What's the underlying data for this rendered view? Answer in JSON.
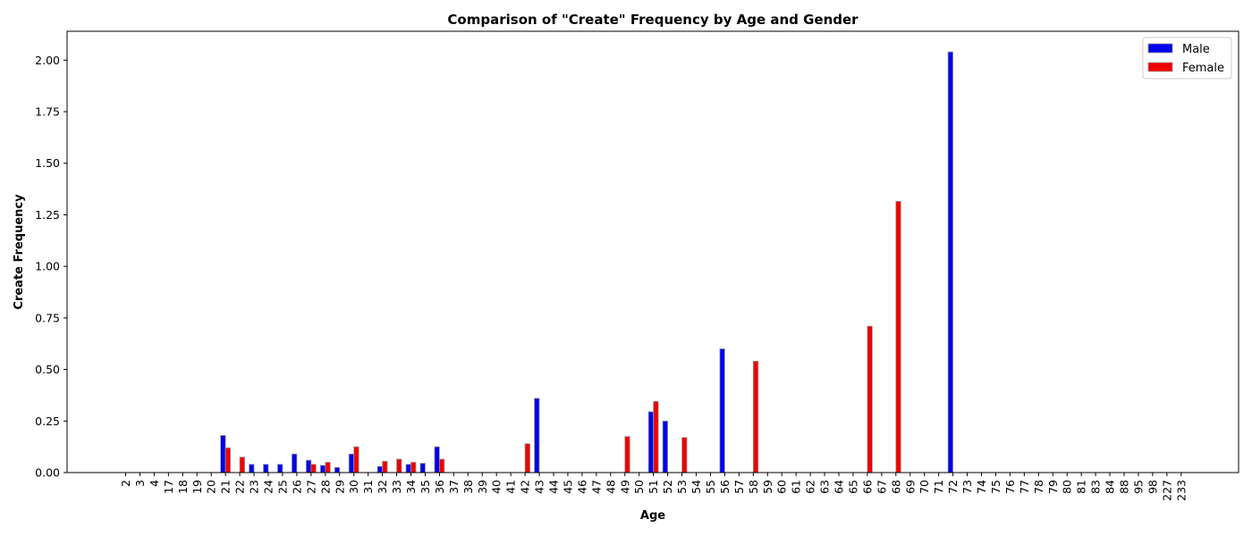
{
  "chart_data": {
    "type": "bar",
    "title": "Comparison of \"Create\" Frequency by Age and Gender",
    "xlabel": "Age",
    "ylabel": "Create Frequency",
    "ylim": [
      0,
      2.14
    ],
    "yticks": [
      "0.00",
      "0.25",
      "0.50",
      "0.75",
      "1.00",
      "1.25",
      "1.50",
      "1.75",
      "2.00"
    ],
    "ytick_values": [
      0,
      0.25,
      0.5,
      0.75,
      1.0,
      1.25,
      1.5,
      1.75,
      2.0
    ],
    "grid": false,
    "legend_position": "top-right",
    "categories": [
      "2",
      "3",
      "4",
      "17",
      "18",
      "19",
      "20",
      "21",
      "22",
      "23",
      "24",
      "25",
      "26",
      "27",
      "28",
      "29",
      "30",
      "31",
      "32",
      "33",
      "34",
      "35",
      "36",
      "37",
      "38",
      "39",
      "40",
      "41",
      "42",
      "43",
      "44",
      "45",
      "46",
      "47",
      "48",
      "49",
      "50",
      "51",
      "52",
      "53",
      "54",
      "55",
      "56",
      "57",
      "58",
      "59",
      "60",
      "61",
      "62",
      "63",
      "64",
      "65",
      "66",
      "67",
      "68",
      "69",
      "70",
      "71",
      "72",
      "73",
      "74",
      "75",
      "76",
      "77",
      "78",
      "79",
      "80",
      "81",
      "83",
      "84",
      "88",
      "95",
      "98",
      "227",
      "233"
    ],
    "series": [
      {
        "name": "Male",
        "color": "#0000ee",
        "values": [
          0,
          0,
          0,
          0,
          0,
          0,
          0,
          0.18,
          0,
          0.04,
          0.04,
          0.04,
          0.09,
          0.06,
          0.035,
          0.025,
          0.09,
          0,
          0.03,
          0,
          0.04,
          0.045,
          0.125,
          0,
          0,
          0,
          0,
          0,
          0,
          0.36,
          0,
          0,
          0,
          0,
          0,
          0,
          0,
          0.295,
          0.25,
          0,
          0,
          0,
          0.6,
          0,
          0,
          0,
          0,
          0,
          0,
          0,
          0,
          0,
          0,
          0,
          0,
          0,
          0,
          0,
          2.04,
          0,
          0,
          0,
          0,
          0,
          0,
          0,
          0,
          0,
          0,
          0,
          0,
          0,
          0,
          0,
          0
        ]
      },
      {
        "name": "Female",
        "color": "#ee0000",
        "values": [
          0,
          0,
          0,
          0,
          0,
          0,
          0,
          0.12,
          0.075,
          0,
          0,
          0,
          0,
          0.04,
          0.05,
          0,
          0.125,
          0,
          0.055,
          0.065,
          0.05,
          0,
          0.065,
          0,
          0,
          0,
          0,
          0,
          0.14,
          0,
          0,
          0,
          0,
          0,
          0,
          0.175,
          0,
          0.345,
          0,
          0.17,
          0,
          0,
          0,
          0,
          0.54,
          0,
          0,
          0,
          0,
          0,
          0,
          0,
          0.71,
          0,
          1.315,
          0,
          0,
          0,
          0,
          0,
          0,
          0,
          0,
          0,
          0,
          0,
          0,
          0,
          0,
          0,
          0,
          0,
          0,
          0,
          0
        ]
      }
    ]
  }
}
